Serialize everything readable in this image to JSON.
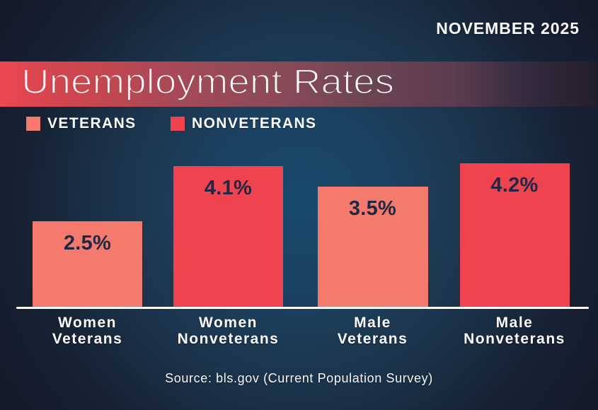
{
  "header": {
    "date_label": "NOVEMBER 2025"
  },
  "title": "Unemployment Rates",
  "legend": [
    {
      "label": "VETERANS",
      "color": "#F37A6C"
    },
    {
      "label": "NONVETERANS",
      "color": "#EF4450"
    }
  ],
  "source": "Source: bls.gov (Current Population Survey)",
  "colors": {
    "background_glow": "#17496B",
    "background_dark": "#141A2A",
    "banner_red": "#E74650",
    "veterans": "#F37A6C",
    "nonveterans": "#EF4450",
    "value_label": "#1E2843",
    "axis": "#FFFFFF"
  },
  "chart_data": {
    "type": "bar",
    "title": "Unemployment Rates",
    "categories": [
      "Women Veterans",
      "Women Nonveterans",
      "Male Veterans",
      "Male Nonveterans"
    ],
    "values": [
      2.5,
      4.1,
      3.5,
      4.2
    ],
    "ylim": [
      0,
      4.5
    ],
    "grid": false,
    "legend_position": "top-left",
    "bars": [
      {
        "category_lines": [
          "Women",
          "Veterans"
        ],
        "value": 2.5,
        "label": "2.5%",
        "series": "Veterans",
        "color": "#F37A6C"
      },
      {
        "category_lines": [
          "Women",
          "Nonveterans"
        ],
        "value": 4.1,
        "label": "4.1%",
        "series": "Nonveterans",
        "color": "#EF4450"
      },
      {
        "category_lines": [
          "Male",
          "Veterans"
        ],
        "value": 3.5,
        "label": "3.5%",
        "series": "Veterans",
        "color": "#F37A6C"
      },
      {
        "category_lines": [
          "Male",
          "Nonveterans"
        ],
        "value": 4.2,
        "label": "4.2%",
        "series": "Nonveterans",
        "color": "#EF4450"
      }
    ]
  }
}
